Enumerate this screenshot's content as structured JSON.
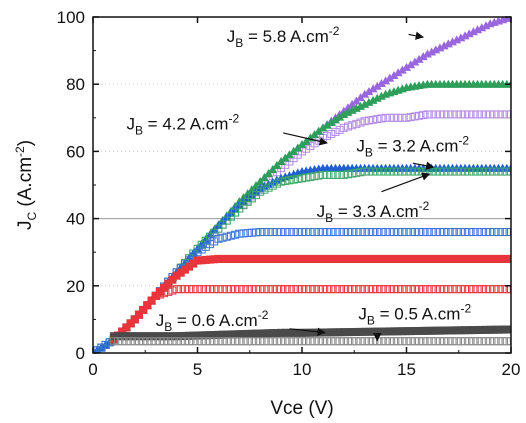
{
  "chart_data": {
    "type": "scatter",
    "title": "",
    "xlabel": "Vce (V)",
    "ylabel_main": "J",
    "ylabel_sub": "C",
    "ylabel_rest": " (A.cm",
    "ylabel_sup": "-2",
    "ylabel_close": ")",
    "xlim": [
      0,
      20
    ],
    "ylim": [
      0,
      100
    ],
    "x_ticks": [
      0,
      5,
      10,
      15,
      20
    ],
    "y_ticks": [
      0,
      20,
      40,
      60,
      80,
      100
    ],
    "x_tick_labels": [
      "0",
      "5",
      "10",
      "15",
      "20"
    ],
    "y_tick_labels": [
      "0",
      "20",
      "40",
      "60",
      "80",
      "100"
    ],
    "grid": "horizontal dotted",
    "reference_line_y": 40,
    "series": [
      {
        "color": "#b28ae6",
        "marker": "open-square",
        "values": [
          [
            0,
            0
          ],
          [
            1,
            4
          ],
          [
            2,
            10
          ],
          [
            3,
            17
          ],
          [
            4,
            24
          ],
          [
            5,
            31
          ],
          [
            6,
            37
          ],
          [
            7,
            43
          ],
          [
            8,
            49
          ],
          [
            9,
            55
          ],
          [
            10,
            60
          ],
          [
            11,
            64
          ],
          [
            12,
            67
          ],
          [
            13,
            69
          ],
          [
            14,
            70
          ],
          [
            15,
            70
          ],
          [
            16,
            71
          ],
          [
            17,
            71
          ],
          [
            18,
            71
          ],
          [
            19,
            71
          ],
          [
            20,
            71
          ]
        ]
      },
      {
        "color": "#9966dd",
        "marker": "filled-triangle",
        "values": [
          [
            0,
            0
          ],
          [
            1,
            4
          ],
          [
            2,
            10
          ],
          [
            3,
            17
          ],
          [
            4,
            24
          ],
          [
            5,
            31
          ],
          [
            6,
            38
          ],
          [
            7,
            45
          ],
          [
            8,
            51
          ],
          [
            9,
            57
          ],
          [
            10,
            62
          ],
          [
            11,
            67
          ],
          [
            12,
            72
          ],
          [
            13,
            77
          ],
          [
            14,
            81
          ],
          [
            15,
            85
          ],
          [
            16,
            89
          ],
          [
            17,
            92
          ],
          [
            18,
            95
          ],
          [
            19,
            98
          ],
          [
            20,
            100
          ]
        ]
      },
      {
        "color": "#2e9e5b",
        "marker": "filled-triangle",
        "values": [
          [
            0,
            0
          ],
          [
            1,
            4
          ],
          [
            2,
            10
          ],
          [
            3,
            17
          ],
          [
            4,
            24
          ],
          [
            5,
            31
          ],
          [
            6,
            38
          ],
          [
            7,
            45
          ],
          [
            8,
            51
          ],
          [
            9,
            57
          ],
          [
            10,
            62
          ],
          [
            11,
            67
          ],
          [
            12,
            71
          ],
          [
            13,
            74
          ],
          [
            14,
            77
          ],
          [
            15,
            79
          ],
          [
            16,
            80
          ],
          [
            17,
            80
          ],
          [
            18,
            80
          ],
          [
            19,
            80
          ],
          [
            20,
            80
          ]
        ]
      },
      {
        "color": "#1f5fd1",
        "marker": "filled-triangle",
        "values": [
          [
            0,
            0
          ],
          [
            1,
            4
          ],
          [
            2,
            10
          ],
          [
            3,
            17
          ],
          [
            4,
            24
          ],
          [
            5,
            31
          ],
          [
            6,
            38
          ],
          [
            7,
            44
          ],
          [
            8,
            49
          ],
          [
            9,
            52
          ],
          [
            10,
            54
          ],
          [
            11,
            55
          ],
          [
            12,
            55
          ],
          [
            13,
            55
          ],
          [
            14,
            55
          ],
          [
            15,
            55
          ],
          [
            16,
            55
          ],
          [
            17,
            55
          ],
          [
            18,
            55
          ],
          [
            19,
            55
          ],
          [
            20,
            55
          ]
        ]
      },
      {
        "color": "#3ea86b",
        "marker": "open-square",
        "values": [
          [
            0,
            0
          ],
          [
            1,
            4
          ],
          [
            2,
            10
          ],
          [
            3,
            17
          ],
          [
            4,
            24
          ],
          [
            5,
            31
          ],
          [
            6,
            37
          ],
          [
            7,
            43
          ],
          [
            8,
            48
          ],
          [
            9,
            51
          ],
          [
            10,
            52
          ],
          [
            11,
            53
          ],
          [
            12,
            53
          ],
          [
            13,
            54
          ],
          [
            14,
            54
          ],
          [
            15,
            54
          ],
          [
            16,
            54
          ],
          [
            17,
            54
          ],
          [
            18,
            54
          ],
          [
            19,
            54
          ],
          [
            20,
            54
          ]
        ]
      },
      {
        "color": "#3a74d8",
        "marker": "open-square",
        "values": [
          [
            0,
            0
          ],
          [
            1,
            4
          ],
          [
            2,
            10
          ],
          [
            3,
            17
          ],
          [
            4,
            24
          ],
          [
            5,
            30
          ],
          [
            6,
            34
          ],
          [
            7,
            35.5
          ],
          [
            8,
            36
          ],
          [
            9,
            36
          ],
          [
            10,
            36
          ],
          [
            11,
            36
          ],
          [
            12,
            36
          ],
          [
            13,
            36
          ],
          [
            14,
            36
          ],
          [
            15,
            36
          ],
          [
            16,
            36
          ],
          [
            17,
            36
          ],
          [
            18,
            36
          ],
          [
            19,
            36
          ],
          [
            20,
            36
          ]
        ]
      },
      {
        "color": "#e8343a",
        "marker": "filled-square",
        "values": [
          [
            1,
            4
          ],
          [
            2,
            10
          ],
          [
            3,
            17
          ],
          [
            4,
            23
          ],
          [
            5,
            27.5
          ],
          [
            6,
            28
          ],
          [
            7,
            28
          ],
          [
            8,
            28
          ],
          [
            9,
            28
          ],
          [
            10,
            28
          ],
          [
            11,
            28
          ],
          [
            12,
            28
          ],
          [
            13,
            28
          ],
          [
            14,
            28
          ],
          [
            15,
            28
          ],
          [
            16,
            28
          ],
          [
            17,
            28
          ],
          [
            18,
            28
          ],
          [
            19,
            28
          ],
          [
            20,
            28
          ]
        ]
      },
      {
        "color": "#e8343a",
        "marker": "open-square",
        "values": [
          [
            1,
            4
          ],
          [
            2,
            10
          ],
          [
            3,
            17
          ],
          [
            4,
            19
          ],
          [
            5,
            19
          ],
          [
            6,
            19
          ],
          [
            7,
            19
          ],
          [
            8,
            19
          ],
          [
            9,
            19
          ],
          [
            10,
            19
          ],
          [
            11,
            19
          ],
          [
            12,
            19
          ],
          [
            13,
            19
          ],
          [
            14,
            19
          ],
          [
            15,
            19
          ],
          [
            16,
            19
          ],
          [
            17,
            19
          ],
          [
            18,
            19
          ],
          [
            19,
            19
          ],
          [
            20,
            19
          ]
        ]
      },
      {
        "color": "#4a4a4a",
        "marker": "filled-square",
        "values": [
          [
            1,
            5
          ],
          [
            2,
            5
          ],
          [
            3,
            5
          ],
          [
            4,
            5
          ],
          [
            5,
            5.2
          ],
          [
            6,
            5.4
          ],
          [
            7,
            5.6
          ],
          [
            8,
            5.8
          ],
          [
            9,
            6
          ],
          [
            10,
            6
          ],
          [
            11,
            6.1
          ],
          [
            12,
            6.2
          ],
          [
            13,
            6.3
          ],
          [
            14,
            6.4
          ],
          [
            15,
            6.5
          ],
          [
            16,
            6.6
          ],
          [
            17,
            6.7
          ],
          [
            18,
            6.8
          ],
          [
            19,
            6.9
          ],
          [
            20,
            7
          ]
        ]
      },
      {
        "color": "#888888",
        "marker": "open-square",
        "values": [
          [
            1,
            3.5
          ],
          [
            2,
            3.5
          ],
          [
            3,
            3.5
          ],
          [
            4,
            3.5
          ],
          [
            5,
            3.5
          ],
          [
            6,
            3.5
          ],
          [
            7,
            3.5
          ],
          [
            8,
            3.5
          ],
          [
            9,
            3.5
          ],
          [
            10,
            3.5
          ],
          [
            11,
            3.5
          ],
          [
            12,
            3.5
          ],
          [
            13,
            3.5
          ],
          [
            14,
            3.5
          ],
          [
            15,
            3.5
          ],
          [
            16,
            3.5
          ],
          [
            17,
            3.5
          ],
          [
            18,
            3.5
          ],
          [
            19,
            3.5
          ],
          [
            20,
            3.5
          ]
        ]
      }
    ],
    "annotations": [
      {
        "label": "J",
        "sub": "B",
        "rest": " = 5.8 A.cm",
        "sup": "-2",
        "text_at": [
          6.4,
          92.5
        ],
        "arrow_from": [
          15.1,
          94.8
        ],
        "arrow_to": [
          15.8,
          94
        ]
      },
      {
        "label": "J",
        "sub": "B",
        "rest": " = 4.2 A.cm",
        "sup": "-2",
        "text_at": [
          1.6,
          66.5
        ],
        "arrow_from": [
          9.1,
          65.5
        ],
        "arrow_to": [
          11.2,
          62.5
        ]
      },
      {
        "label": "J",
        "sub": "B",
        "rest": " = 3.2 A.cm",
        "sup": "-2",
        "text_at": [
          12.6,
          60
        ],
        "arrow_from": [
          15.3,
          56.5
        ],
        "arrow_to": [
          16.3,
          55.3
        ]
      },
      {
        "label": "J",
        "sub": "B",
        "rest": " = 3.3 A.cm",
        "sup": "-2",
        "text_at": [
          10.7,
          40.5
        ],
        "arrow_from": [
          13.8,
          48
        ],
        "arrow_to": [
          16.1,
          53.3
        ]
      },
      {
        "label": "J",
        "sub": "B",
        "rest": " = 0.6 A.cm",
        "sup": "-2",
        "text_at": [
          3.0,
          8
        ],
        "arrow_from": [
          9.4,
          7.2
        ],
        "arrow_to": [
          11.1,
          6.1
        ]
      },
      {
        "label": "J",
        "sub": "B",
        "rest": " = 0.5 A.cm",
        "sup": "-2",
        "text_at": [
          12.7,
          10
        ],
        "arrow_from": [
          13.6,
          5.8
        ],
        "arrow_to": [
          13.6,
          3.7
        ]
      }
    ]
  }
}
